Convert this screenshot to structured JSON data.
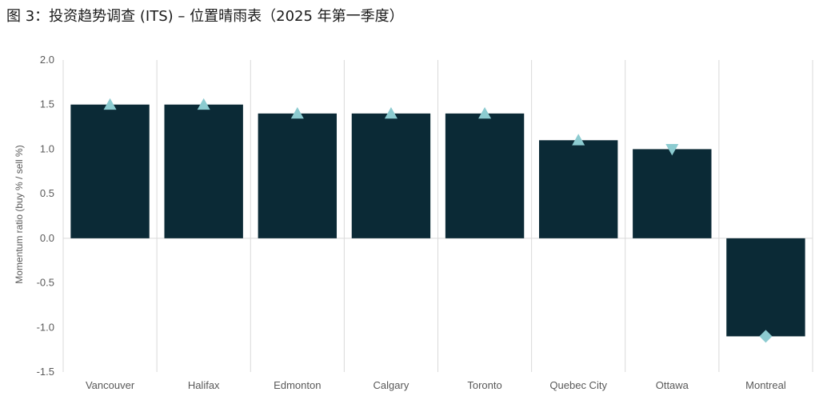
{
  "chart_data": {
    "type": "bar",
    "title": "图 3：投资趋势调查 (ITS) – 位置晴雨表（2025 年第一季度）",
    "ylabel": "Momentum ratio  (buy % / sell %)",
    "xlabel": "",
    "ylim": [
      -1.5,
      2.0
    ],
    "yticks": [
      "-1.5",
      "-1.0",
      "-0.5",
      "0.0",
      "0.5",
      "1.0",
      "1.5",
      "2.0"
    ],
    "ytick_values": [
      -1.5,
      -1.0,
      -0.5,
      0.0,
      0.5,
      1.0,
      1.5,
      2.0
    ],
    "categories": [
      "Vancouver",
      "Halifax",
      "Edmonton",
      "Calgary",
      "Toronto",
      "Quebec City",
      "Ottawa",
      "Montreal"
    ],
    "values": [
      1.5,
      1.5,
      1.4,
      1.4,
      1.4,
      1.1,
      1.0,
      -1.1
    ],
    "markers": [
      "triangle-up",
      "triangle-up",
      "triangle-up",
      "triangle-up",
      "triangle-up",
      "triangle-up",
      "triangle-down",
      "diamond"
    ],
    "grid": "vertical separators",
    "colors": {
      "bar": "#0b2a36",
      "marker": "#8ccbd0",
      "grid": "#d9d9d9",
      "zero_line": "#d9d9d9"
    }
  }
}
